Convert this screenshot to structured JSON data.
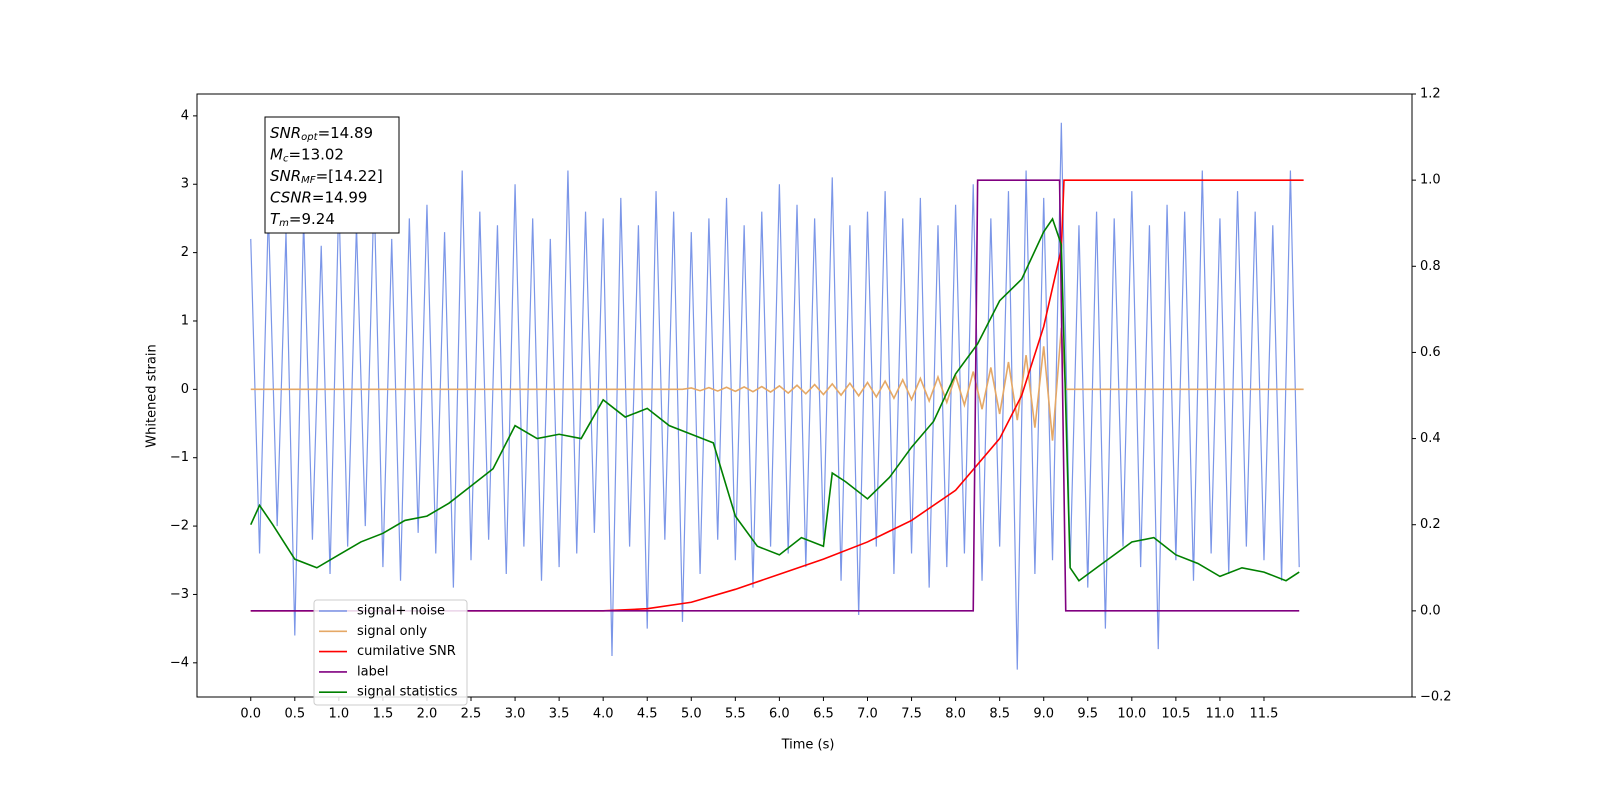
{
  "chart_data": {
    "type": "line",
    "xlabel": "Time (s)",
    "ylabel": "Whitened strain",
    "xlim": [
      -0.61,
      13.18
    ],
    "ylim": [
      -4.5,
      4.32
    ],
    "y2lim": [
      -0.2,
      1.2
    ],
    "xticks": [
      {
        "value": 0,
        "label": "0.0"
      },
      {
        "value": 0.5,
        "label": "0.5"
      },
      {
        "value": 1,
        "label": "1.0"
      },
      {
        "value": 1.5,
        "label": "1.5"
      },
      {
        "value": 2,
        "label": "2.0"
      },
      {
        "value": 2.5,
        "label": "2.5"
      },
      {
        "value": 3,
        "label": "3.0"
      },
      {
        "value": 3.5,
        "label": "3.5"
      },
      {
        "value": 4,
        "label": "4.0"
      },
      {
        "value": 4.5,
        "label": "4.5"
      },
      {
        "value": 5,
        "label": "5.0"
      },
      {
        "value": 5.5,
        "label": "5.5"
      },
      {
        "value": 6,
        "label": "6.0"
      },
      {
        "value": 6.5,
        "label": "6.5"
      },
      {
        "value": 7,
        "label": "7.0"
      },
      {
        "value": 7.5,
        "label": "7.5"
      },
      {
        "value": 8,
        "label": "8.0"
      },
      {
        "value": 8.5,
        "label": "8.5"
      },
      {
        "value": 9,
        "label": "9.0"
      },
      {
        "value": 9.5,
        "label": "9.5"
      },
      {
        "value": 10,
        "label": "10.0"
      },
      {
        "value": 10.5,
        "label": "10.5"
      },
      {
        "value": 11,
        "label": "11.0"
      },
      {
        "value": 11.5,
        "label": "11.5"
      }
    ],
    "yticks": [
      {
        "value": -4,
        "label": "−4"
      },
      {
        "value": -3,
        "label": "−3"
      },
      {
        "value": -2,
        "label": "−2"
      },
      {
        "value": -1,
        "label": "−1"
      },
      0,
      1,
      2,
      3,
      4
    ],
    "y2ticks": [
      {
        "value": -0.2,
        "label": "−0.2"
      },
      {
        "value": 0,
        "label": "0.0"
      },
      {
        "value": 0.2,
        "label": "0.2"
      },
      {
        "value": 0.4,
        "label": "0.4"
      },
      {
        "value": 0.6,
        "label": "0.6"
      },
      {
        "value": 0.8,
        "label": "0.8"
      },
      {
        "value": 1,
        "label": "1.0"
      },
      {
        "value": 1.2,
        "label": "1.2"
      }
    ],
    "legend": "lower left",
    "annotations": [
      {
        "base": "SNR",
        "sub": "opt",
        "rest": "=14.89"
      },
      {
        "base": "M",
        "sub": "c",
        "rest": "=13.02"
      },
      {
        "base": "SNR",
        "sub": "MF",
        "rest": "=[14.22]"
      },
      {
        "base": "CSNR",
        "sub": null,
        "rest": "=14.99"
      },
      {
        "base": "T",
        "sub": "m",
        "rest": "=9.24"
      }
    ],
    "series": [
      {
        "name": "signal+ noise",
        "color": "#7b96e8",
        "axis": "y",
        "x": [
          0,
          0.1,
          0.2,
          0.3,
          0.4,
          0.5,
          0.6,
          0.7,
          0.8,
          0.9,
          1,
          1.1,
          1.2,
          1.3,
          1.4,
          1.5,
          1.6,
          1.7,
          1.8,
          1.9,
          2,
          2.1,
          2.2,
          2.3,
          2.4,
          2.5,
          2.6,
          2.7,
          2.8,
          2.9,
          3,
          3.1,
          3.2,
          3.3,
          3.4,
          3.5,
          3.6,
          3.7,
          3.8,
          3.9,
          4,
          4.1,
          4.2,
          4.3,
          4.4,
          4.5,
          4.6,
          4.7,
          4.8,
          4.9,
          5,
          5.1,
          5.2,
          5.3,
          5.4,
          5.5,
          5.6,
          5.7,
          5.8,
          5.9,
          6,
          6.1,
          6.2,
          6.3,
          6.4,
          6.5,
          6.6,
          6.7,
          6.8,
          6.9,
          7,
          7.1,
          7.2,
          7.3,
          7.4,
          7.5,
          7.6,
          7.7,
          7.8,
          7.9,
          8,
          8.1,
          8.2,
          8.3,
          8.4,
          8.5,
          8.6,
          8.7,
          8.8,
          8.9,
          9,
          9.1,
          9.2,
          9.3,
          9.4,
          9.5,
          9.6,
          9.7,
          9.8,
          9.9,
          10,
          10.1,
          10.2,
          10.3,
          10.4,
          10.5,
          10.6,
          10.7,
          10.8,
          10.9,
          11,
          11.1,
          11.2,
          11.3,
          11.4,
          11.5,
          11.6,
          11.7,
          11.8,
          11.9
        ],
        "values": [
          2.2,
          -2.4,
          2.6,
          -2.0,
          2.3,
          -3.6,
          2.5,
          -2.2,
          2.1,
          -2.7,
          2.8,
          -2.3,
          2.4,
          -2.0,
          2.9,
          -2.6,
          2.2,
          -2.8,
          2.5,
          -2.1,
          2.7,
          -2.4,
          2.3,
          -2.9,
          3.2,
          -2.5,
          2.6,
          -2.2,
          2.4,
          -2.7,
          3.0,
          -2.3,
          2.5,
          -2.8,
          2.2,
          -2.6,
          3.2,
          -2.4,
          2.6,
          -2.1,
          2.5,
          -3.9,
          2.8,
          -2.3,
          2.4,
          -3.5,
          2.9,
          -2.2,
          2.6,
          -3.4,
          2.3,
          -2.7,
          2.5,
          -2.2,
          2.8,
          -2.5,
          2.4,
          -2.9,
          2.6,
          -2.3,
          3.0,
          -2.4,
          2.7,
          -2.6,
          2.5,
          -2.2,
          3.1,
          -2.8,
          2.4,
          -3.3,
          2.6,
          -2.3,
          2.9,
          -2.7,
          2.5,
          -2.4,
          2.8,
          -2.9,
          2.4,
          -2.6,
          2.7,
          -2.4,
          3.0,
          -2.8,
          2.5,
          -2.3,
          2.9,
          -4.1,
          3.2,
          -2.7,
          2.8,
          -2.5,
          3.9,
          -2.6,
          2.4,
          -2.9,
          2.6,
          -3.5,
          2.5,
          -2.3,
          2.9,
          -2.6,
          2.4,
          -3.8,
          2.7,
          -2.5,
          2.6,
          -2.8,
          3.2,
          -2.4,
          2.5,
          -2.7,
          2.9,
          -2.3,
          2.6,
          -2.5,
          2.4,
          -2.8,
          3.2,
          -2.6
        ]
      },
      {
        "name": "signal only",
        "color": "#e5a866",
        "axis": "y",
        "x": [
          0,
          4.9,
          5,
          5.1,
          5.2,
          5.3,
          5.4,
          5.5,
          5.6,
          5.7,
          5.8,
          5.9,
          6,
          6.1,
          6.2,
          6.3,
          6.4,
          6.5,
          6.6,
          6.7,
          6.8,
          6.9,
          7,
          7.1,
          7.2,
          7.3,
          7.4,
          7.5,
          7.6,
          7.7,
          7.8,
          7.9,
          8,
          8.1,
          8.2,
          8.3,
          8.4,
          8.5,
          8.6,
          8.7,
          8.8,
          8.9,
          9,
          9.1,
          9.2,
          9.25,
          11.95
        ],
        "values": [
          0,
          0,
          0.02,
          -0.02,
          0.025,
          -0.025,
          0.03,
          -0.03,
          0.035,
          -0.035,
          0.04,
          -0.04,
          0.05,
          -0.055,
          0.06,
          -0.065,
          0.07,
          -0.075,
          0.08,
          -0.085,
          0.09,
          -0.095,
          0.1,
          -0.11,
          0.12,
          -0.13,
          0.14,
          -0.15,
          0.16,
          -0.17,
          0.18,
          -0.19,
          0.2,
          -0.23,
          0.26,
          -0.29,
          0.32,
          -0.36,
          0.4,
          -0.45,
          0.5,
          -0.56,
          0.63,
          -0.75,
          0.9,
          0,
          0
        ]
      },
      {
        "name": "cumilative SNR",
        "color": "#ff0000",
        "axis": "y2",
        "x": [
          0,
          4,
          4.5,
          5,
          5.5,
          6,
          6.5,
          7,
          7.5,
          8,
          8.5,
          8.75,
          9,
          9.1,
          9.2,
          9.23,
          11.95
        ],
        "values": [
          0,
          0,
          0.005,
          0.02,
          0.05,
          0.085,
          0.12,
          0.16,
          0.21,
          0.28,
          0.4,
          0.5,
          0.66,
          0.75,
          0.84,
          1,
          1
        ]
      },
      {
        "name": "label",
        "color": "#800080",
        "axis": "y2",
        "x": [
          0,
          8.2,
          8.25,
          9.18,
          9.25,
          11.9
        ],
        "values": [
          0,
          0,
          1,
          1,
          0,
          0
        ]
      },
      {
        "name": "signal statistics",
        "color": "#008000",
        "axis": "y2",
        "x": [
          0,
          0.1,
          0.25,
          0.5,
          0.75,
          1,
          1.25,
          1.5,
          1.75,
          2,
          2.25,
          2.5,
          2.75,
          3,
          3.25,
          3.5,
          3.75,
          4,
          4.25,
          4.5,
          4.75,
          5,
          5.25,
          5.5,
          5.75,
          6,
          6.25,
          6.5,
          6.6,
          6.75,
          7,
          7.25,
          7.5,
          7.75,
          8,
          8.25,
          8.5,
          8.75,
          9,
          9.1,
          9.2,
          9.3,
          9.4,
          9.6,
          10,
          10.25,
          10.5,
          10.75,
          11,
          11.25,
          11.5,
          11.75,
          11.9
        ],
        "values": [
          0.2,
          0.245,
          0.2,
          0.12,
          0.1,
          0.13,
          0.16,
          0.18,
          0.21,
          0.22,
          0.25,
          0.29,
          0.33,
          0.43,
          0.4,
          0.41,
          0.4,
          0.49,
          0.45,
          0.47,
          0.43,
          0.41,
          0.39,
          0.22,
          0.15,
          0.13,
          0.17,
          0.15,
          0.32,
          0.3,
          0.26,
          0.31,
          0.38,
          0.44,
          0.55,
          0.62,
          0.72,
          0.77,
          0.88,
          0.91,
          0.85,
          0.1,
          0.07,
          0.1,
          0.16,
          0.17,
          0.13,
          0.11,
          0.08,
          0.1,
          0.09,
          0.07,
          0.09
        ]
      }
    ]
  }
}
